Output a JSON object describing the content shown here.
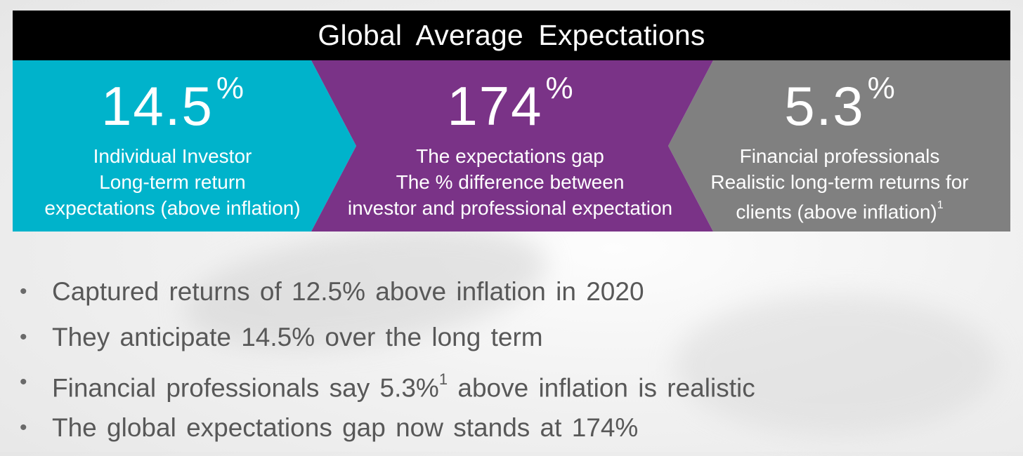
{
  "title": "Global Average Expectations",
  "colors": {
    "teal": "#00b3cb",
    "purple": "#7a3387",
    "gray": "#808080",
    "title_bg": "#000000",
    "bullet_text": "#585858"
  },
  "panels": [
    {
      "value": "14.5",
      "unit": "%",
      "lines": [
        "Individual Investor",
        "Long-term return",
        "expectations (above inflation)"
      ]
    },
    {
      "value": "174",
      "unit": "%",
      "lines": [
        "The expectations gap",
        "The % difference between",
        "investor and professional expectation"
      ]
    },
    {
      "value": "5.3",
      "unit": "%",
      "lines": [
        "Financial professionals",
        "Realistic long-term returns for",
        "clients (above inflation)"
      ],
      "footnote": "1"
    }
  ],
  "bullet_glyph": "•",
  "bullets": [
    {
      "text": "Captured returns of 12.5% above inflation in 2020"
    },
    {
      "text": "They anticipate 14.5% over the long term"
    },
    {
      "text_before": "Financial professionals say 5.3%",
      "footnote": "1",
      "text_after": " above inflation is realistic"
    },
    {
      "text": "The global expectations gap now stands at 174%"
    }
  ]
}
